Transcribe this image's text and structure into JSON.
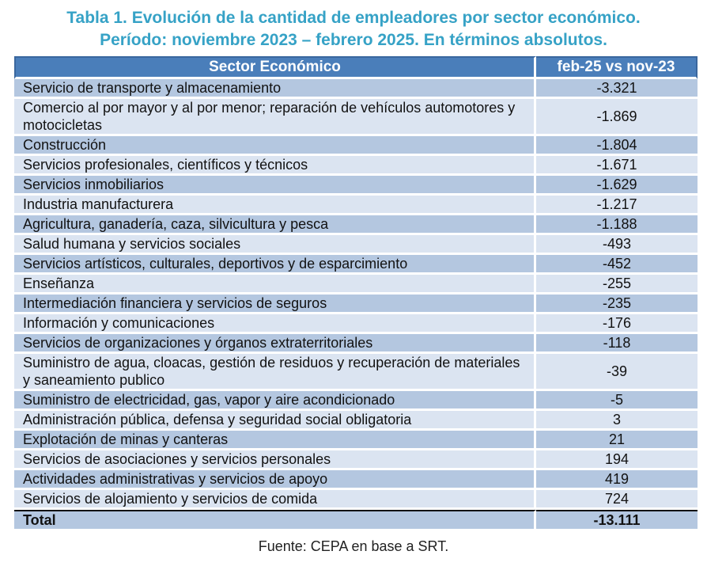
{
  "title": {
    "line1": "Tabla 1. Evolución de la cantidad de empleadores por sector económico.",
    "line2": "Período: noviembre 2023 – febrero 2025. En términos absolutos."
  },
  "table": {
    "headers": [
      "Sector Económico",
      "feb-25 vs nov-23"
    ],
    "rows": [
      {
        "sector": "Servicio de transporte y almacenamiento",
        "value": "-3.321"
      },
      {
        "sector": "Comercio al por mayor y al por menor; reparación de vehículos automotores y motocicletas",
        "value": "-1.869"
      },
      {
        "sector": "Construcción",
        "value": "-1.804"
      },
      {
        "sector": "Servicios profesionales, científicos y técnicos",
        "value": "-1.671"
      },
      {
        "sector": "Servicios inmobiliarios",
        "value": "-1.629"
      },
      {
        "sector": "Industria manufacturera",
        "value": "-1.217"
      },
      {
        "sector": "Agricultura, ganadería, caza, silvicultura y pesca",
        "value": "-1.188"
      },
      {
        "sector": "Salud humana y servicios sociales",
        "value": "-493"
      },
      {
        "sector": "Servicios artísticos, culturales, deportivos y de esparcimiento",
        "value": "-452"
      },
      {
        "sector": "Enseñanza",
        "value": "-255"
      },
      {
        "sector": "Intermediación financiera y servicios de seguros",
        "value": "-235"
      },
      {
        "sector": "Información y comunicaciones",
        "value": "-176"
      },
      {
        "sector": "Servicios de organizaciones y órganos extraterritoriales",
        "value": "-118"
      },
      {
        "sector": "Suministro de agua, cloacas, gestión de residuos y recuperación de materiales y saneamiento publico",
        "value": "-39"
      },
      {
        "sector": "Suministro de electricidad, gas, vapor y aire acondicionado",
        "value": "-5"
      },
      {
        "sector": "Administración pública, defensa y seguridad social obligatoria",
        "value": "3"
      },
      {
        "sector": "Explotación de minas y canteras",
        "value": "21"
      },
      {
        "sector": "Servicios de asociaciones y servicios personales",
        "value": "194"
      },
      {
        "sector": "Actividades administrativas y servicios de apoyo",
        "value": "419"
      },
      {
        "sector": "Servicios de alojamiento y servicios de comida",
        "value": "724"
      }
    ],
    "total": {
      "sector": "Total",
      "value": "-13.111"
    }
  },
  "footer": {
    "source": "Fuente: CEPA en base a SRT."
  },
  "colors": {
    "title_accent": "#36A2C6",
    "header_bg": "#4A7EBA",
    "header_border": "#3A679E",
    "row_dark": "#B4C7E0",
    "row_light": "#DBE4F1",
    "total_rule": "#111111"
  },
  "chart_data": {
    "type": "table",
    "title": "Tabla 1. Evolución de la cantidad de empleadores por sector económico. Período: noviembre 2023 – febrero 2025. En términos absolutos.",
    "columns": [
      "Sector Económico",
      "feb-25 vs nov-23"
    ],
    "categories": [
      "Servicio de transporte y almacenamiento",
      "Comercio al por mayor y al por menor; reparación de vehículos automotores y motocicletas",
      "Construcción",
      "Servicios profesionales, científicos y técnicos",
      "Servicios inmobiliarios",
      "Industria manufacturera",
      "Agricultura, ganadería, caza, silvicultura y pesca",
      "Salud humana y servicios sociales",
      "Servicios artísticos, culturales, deportivos y de esparcimiento",
      "Enseñanza",
      "Intermediación financiera y servicios de seguros",
      "Información y comunicaciones",
      "Servicios de organizaciones y órganos extraterritoriales",
      "Suministro de agua, cloacas, gestión de residuos y recuperación de materiales y saneamiento publico",
      "Suministro de electricidad, gas, vapor y aire acondicionado",
      "Administración pública, defensa y seguridad social obligatoria",
      "Explotación de minas y canteras",
      "Servicios de asociaciones y servicios personales",
      "Actividades administrativas y servicios de apoyo",
      "Servicios de alojamiento y servicios de comida"
    ],
    "values": [
      -3321,
      -1869,
      -1804,
      -1671,
      -1629,
      -1217,
      -1188,
      -493,
      -452,
      -255,
      -235,
      -176,
      -118,
      -39,
      -5,
      3,
      21,
      194,
      419,
      724
    ],
    "total": -13111,
    "source": "Fuente: CEPA en base a SRT."
  }
}
